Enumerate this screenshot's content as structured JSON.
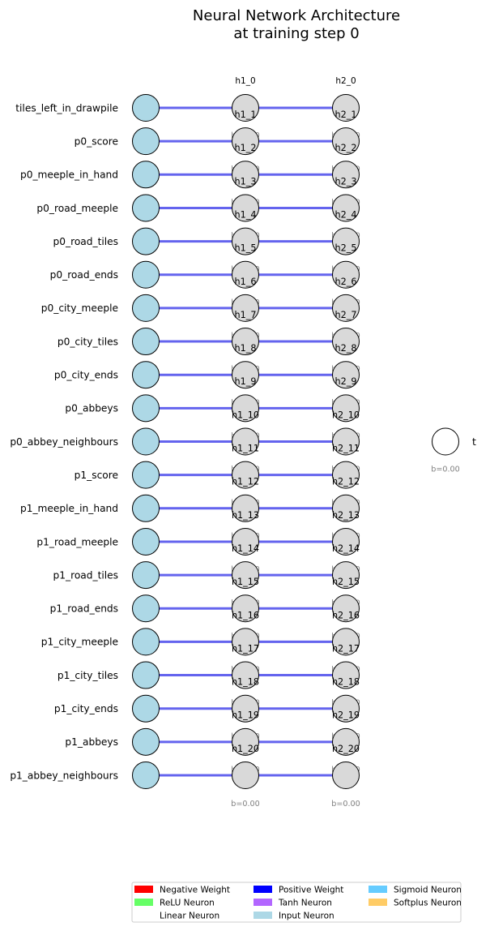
{
  "title_line1": "Neural Network Architecture",
  "title_line2": "at training step 0",
  "colors": {
    "edge": "#6464ee",
    "input_fill": "#add8e6",
    "hidden_fill": "#d9d9d9",
    "output_fill": "#ffffff",
    "stroke": "#000000"
  },
  "inputs": [
    "tiles_left_in_drawpile",
    "p0_score",
    "p0_meeple_in_hand",
    "p0_road_meeple",
    "p0_road_tiles",
    "p0_road_ends",
    "p0_city_meeple",
    "p0_city_tiles",
    "p0_city_ends",
    "p0_abbeys",
    "p0_abbey_neighbours",
    "p1_score",
    "p1_meeple_in_hand",
    "p1_road_meeple",
    "p1_road_tiles",
    "p1_road_ends",
    "p1_city_meeple",
    "p1_city_tiles",
    "p1_city_ends",
    "p1_abbeys",
    "p1_abbey_neighbours"
  ],
  "hidden_layers": [
    {
      "header": "h1_0",
      "labels": [
        "h1_1",
        "h1_2",
        "h1_3",
        "h1_4",
        "h1_5",
        "h1_6",
        "h1_7",
        "h1_8",
        "h1_9",
        "h1_10",
        "h1_11",
        "h1_12",
        "h1_13",
        "h1_14",
        "h1_15",
        "h1_16",
        "h1_17",
        "h1_18",
        "h1_19",
        "h1_20"
      ],
      "bias_text": "b=0.00"
    },
    {
      "header": "h2_0",
      "labels": [
        "h2_1",
        "h2_2",
        "h2_3",
        "h2_4",
        "h2_5",
        "h2_6",
        "h2_7",
        "h2_8",
        "h2_9",
        "h2_10",
        "h2_11",
        "h2_12",
        "h2_13",
        "h2_14",
        "h2_15",
        "h2_16",
        "h2_17",
        "h2_18",
        "h2_19",
        "h2_20"
      ],
      "bias_text": "b=0.00"
    }
  ],
  "output": {
    "label": "t",
    "bias_text": "b=0.00"
  },
  "legend": [
    {
      "label": "Negative Weight",
      "color": "#ff0000"
    },
    {
      "label": "ReLU Neuron",
      "color": "#66ff66"
    },
    {
      "label": "Linear Neuron",
      "color": "#ffffff"
    },
    {
      "label": "Positive Weight",
      "color": "#0000ff"
    },
    {
      "label": "Tanh Neuron",
      "color": "#b266ff"
    },
    {
      "label": "Input Neuron",
      "color": "#add8e6"
    },
    {
      "label": "Sigmoid Neuron",
      "color": "#66ccff"
    },
    {
      "label": "Softplus Neuron",
      "color": "#ffcc66"
    }
  ]
}
